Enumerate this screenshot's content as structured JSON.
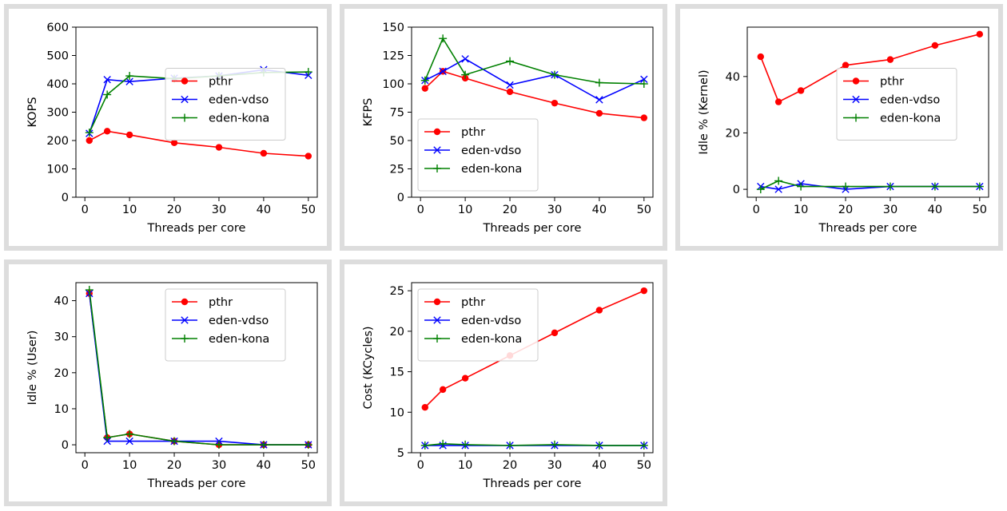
{
  "chart_data": [
    {
      "type": "line",
      "xlabel": "Threads per core",
      "ylabel": "KOPS",
      "xlim": [
        -2,
        52
      ],
      "ylim": [
        0,
        600
      ],
      "xticks": [
        0,
        10,
        20,
        30,
        40,
        50
      ],
      "yticks": [
        0,
        100,
        200,
        300,
        400,
        500,
        600
      ],
      "legend": "center-right",
      "x": [
        1,
        5,
        10,
        20,
        30,
        40,
        50
      ],
      "series": [
        {
          "name": "pthr",
          "color": "#ff0000",
          "marker": "circle",
          "values": [
            200,
            233,
            220,
            192,
            176,
            155,
            145
          ]
        },
        {
          "name": "eden-vdso",
          "color": "#0000ff",
          "marker": "x",
          "values": [
            225,
            415,
            408,
            420,
            428,
            450,
            430
          ]
        },
        {
          "name": "eden-kona",
          "color": "#008000",
          "marker": "plus",
          "values": [
            228,
            362,
            428,
            418,
            428,
            440,
            442
          ]
        }
      ]
    },
    {
      "type": "line",
      "xlabel": "Threads per core",
      "ylabel": "KFPS",
      "xlim": [
        -2,
        52
      ],
      "ylim": [
        0,
        150
      ],
      "xticks": [
        0,
        10,
        20,
        30,
        40,
        50
      ],
      "yticks": [
        0,
        25,
        50,
        75,
        100,
        125,
        150
      ],
      "legend": "lower-left",
      "x": [
        1,
        5,
        10,
        20,
        30,
        40,
        50
      ],
      "series": [
        {
          "name": "pthr",
          "color": "#ff0000",
          "marker": "circle",
          "values": [
            96,
            111,
            105,
            93,
            83,
            74,
            70
          ]
        },
        {
          "name": "eden-vdso",
          "color": "#0000ff",
          "marker": "x",
          "values": [
            103,
            111,
            122,
            99,
            108,
            86,
            104
          ]
        },
        {
          "name": "eden-kona",
          "color": "#008000",
          "marker": "plus",
          "values": [
            103,
            140,
            108,
            120,
            108,
            101,
            100
          ]
        }
      ]
    },
    {
      "type": "line",
      "xlabel": "Threads per core",
      "ylabel": "Idle % (Kernel)",
      "xlim": [
        -2,
        52
      ],
      "ylim": [
        -2.8,
        57.5
      ],
      "xticks": [
        0,
        10,
        20,
        30,
        40,
        50
      ],
      "yticks": [
        0,
        20,
        40
      ],
      "legend": "center-right",
      "x": [
        1,
        5,
        10,
        20,
        30,
        40,
        50
      ],
      "series": [
        {
          "name": "pthr",
          "color": "#ff0000",
          "marker": "circle",
          "values": [
            47,
            31,
            35,
            44,
            46,
            51,
            55
          ]
        },
        {
          "name": "eden-vdso",
          "color": "#0000ff",
          "marker": "x",
          "values": [
            1,
            0,
            2,
            0,
            1,
            1,
            1
          ]
        },
        {
          "name": "eden-kona",
          "color": "#008000",
          "marker": "plus",
          "values": [
            0,
            3,
            1,
            1,
            1,
            1,
            1
          ]
        }
      ]
    },
    {
      "type": "line",
      "xlabel": "Threads per core",
      "ylabel": "Idle % (User)",
      "xlim": [
        -2,
        52
      ],
      "ylim": [
        -2.2,
        45
      ],
      "xticks": [
        0,
        10,
        20,
        30,
        40,
        50
      ],
      "yticks": [
        0,
        10,
        20,
        30,
        40
      ],
      "legend": "upper-right",
      "x": [
        1,
        5,
        10,
        20,
        30,
        40,
        50
      ],
      "series": [
        {
          "name": "pthr",
          "color": "#ff0000",
          "marker": "circle",
          "values": [
            42,
            2,
            3,
            1,
            0,
            0,
            0
          ]
        },
        {
          "name": "eden-vdso",
          "color": "#0000ff",
          "marker": "x",
          "values": [
            42,
            1,
            1,
            1,
            1,
            0,
            0
          ]
        },
        {
          "name": "eden-kona",
          "color": "#008000",
          "marker": "plus",
          "values": [
            43,
            2,
            3,
            1,
            0,
            0,
            0
          ]
        }
      ]
    },
    {
      "type": "line",
      "xlabel": "Threads per core",
      "ylabel": "Cost (KCycles)",
      "xlim": [
        -2,
        52
      ],
      "ylim": [
        5,
        26
      ],
      "xticks": [
        0,
        10,
        20,
        30,
        40,
        50
      ],
      "yticks": [
        5,
        10,
        15,
        20,
        25
      ],
      "legend": "upper-left",
      "x": [
        1,
        5,
        10,
        20,
        30,
        40,
        50
      ],
      "series": [
        {
          "name": "pthr",
          "color": "#ff0000",
          "marker": "circle",
          "values": [
            10.6,
            12.8,
            14.2,
            17.0,
            19.8,
            22.6,
            25.0
          ]
        },
        {
          "name": "eden-vdso",
          "color": "#0000ff",
          "marker": "x",
          "values": [
            5.9,
            5.9,
            5.9,
            5.9,
            5.9,
            5.9,
            5.9
          ]
        },
        {
          "name": "eden-kona",
          "color": "#008000",
          "marker": "plus",
          "values": [
            5.9,
            6.1,
            6.0,
            5.9,
            6.0,
            5.9,
            5.9
          ]
        }
      ]
    }
  ]
}
